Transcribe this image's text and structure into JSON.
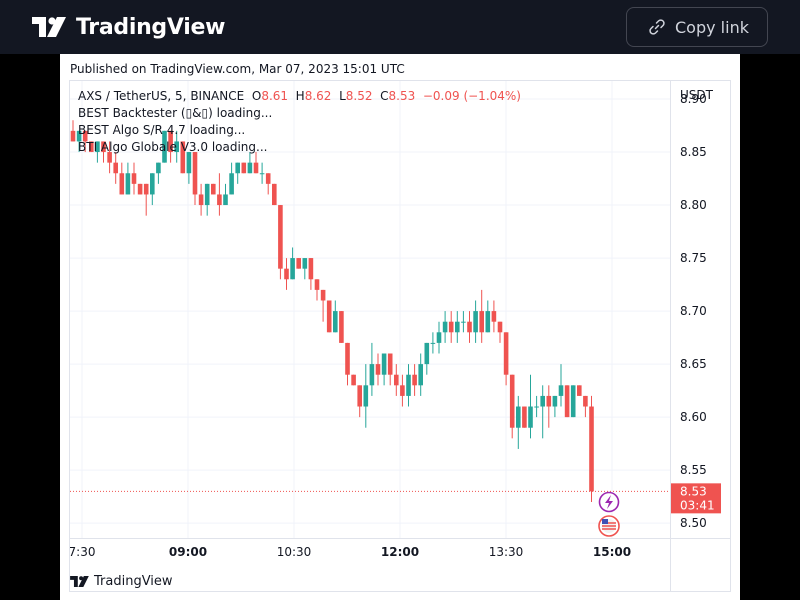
{
  "topbar": {
    "brand": "TradingView",
    "copy_link_label": "Copy link"
  },
  "published_line": "Published on TradingView.com, Mar 07, 2023 15:01 UTC",
  "legend": {
    "symbol": "AXS / TetherUS, 5, BINANCE",
    "o_label": "O",
    "o_value": "8.61",
    "h_label": "H",
    "h_value": "8.62",
    "l_label": "L",
    "l_value": "8.52",
    "c_label": "C",
    "c_value": "8.53",
    "change": "−0.09 (−1.04%)",
    "indicators": [
      "BEST Backtester (▯&▯) loading...",
      "BEST Algo S/R 4.7 loading...",
      "BTI Algo Globale V3.0 loading..."
    ]
  },
  "footer_brand": "TradingView",
  "colors": {
    "up": "#26a69a",
    "down": "#ef5350",
    "bg": "#131722"
  },
  "chart_data": {
    "type": "candlestick",
    "currency": "USDT",
    "y_ticks": [
      "8.90",
      "8.85",
      "8.80",
      "8.75",
      "8.70",
      "8.65",
      "8.60",
      "8.55",
      "8.50"
    ],
    "x_ticks": [
      {
        "label": "7:30",
        "bold": false
      },
      {
        "label": "09:00",
        "bold": true
      },
      {
        "label": "10:30",
        "bold": false
      },
      {
        "label": "12:00",
        "bold": true
      },
      {
        "label": "13:30",
        "bold": false
      },
      {
        "label": "15:00",
        "bold": true
      }
    ],
    "ylim": [
      8.486,
      8.917
    ],
    "last_price": "8.53",
    "countdown": "03:41",
    "candles": [
      [
        8.87,
        8.88,
        8.86,
        8.86
      ],
      [
        8.86,
        8.87,
        8.85,
        8.87
      ],
      [
        8.87,
        8.87,
        8.85,
        8.86
      ],
      [
        8.86,
        8.86,
        8.85,
        8.85
      ],
      [
        8.85,
        8.86,
        8.84,
        8.86
      ],
      [
        8.86,
        8.86,
        8.84,
        8.85
      ],
      [
        8.85,
        8.86,
        8.83,
        8.84
      ],
      [
        8.84,
        8.85,
        8.82,
        8.83
      ],
      [
        8.83,
        8.84,
        8.81,
        8.81
      ],
      [
        8.81,
        8.84,
        8.81,
        8.83
      ],
      [
        8.83,
        8.84,
        8.81,
        8.82
      ],
      [
        8.82,
        8.82,
        8.81,
        8.81
      ],
      [
        8.82,
        8.82,
        8.79,
        8.81
      ],
      [
        8.81,
        8.83,
        8.8,
        8.83
      ],
      [
        8.83,
        8.84,
        8.82,
        8.84
      ],
      [
        8.84,
        8.87,
        8.84,
        8.87
      ],
      [
        8.87,
        8.87,
        8.84,
        8.85
      ],
      [
        8.85,
        8.87,
        8.84,
        8.86
      ],
      [
        8.86,
        8.86,
        8.83,
        8.83
      ],
      [
        8.83,
        8.85,
        8.82,
        8.85
      ],
      [
        8.85,
        8.85,
        8.8,
        8.81
      ],
      [
        8.81,
        8.82,
        8.79,
        8.8
      ],
      [
        8.8,
        8.82,
        8.79,
        8.82
      ],
      [
        8.82,
        8.82,
        8.81,
        8.81
      ],
      [
        8.81,
        8.83,
        8.79,
        8.8
      ],
      [
        8.8,
        8.82,
        8.8,
        8.81
      ],
      [
        8.81,
        8.84,
        8.81,
        8.83
      ],
      [
        8.83,
        8.84,
        8.82,
        8.84
      ],
      [
        8.84,
        8.84,
        8.83,
        8.83
      ],
      [
        8.83,
        8.85,
        8.83,
        8.84
      ],
      [
        8.84,
        8.85,
        8.83,
        8.83
      ],
      [
        8.83,
        8.84,
        8.82,
        8.83
      ],
      [
        8.83,
        8.83,
        8.81,
        8.82
      ],
      [
        8.82,
        8.82,
        8.8,
        8.8
      ],
      [
        8.8,
        8.8,
        8.73,
        8.74
      ],
      [
        8.74,
        8.75,
        8.72,
        8.73
      ],
      [
        8.73,
        8.76,
        8.73,
        8.75
      ],
      [
        8.75,
        8.75,
        8.74,
        8.74
      ],
      [
        8.74,
        8.75,
        8.73,
        8.75
      ],
      [
        8.75,
        8.75,
        8.72,
        8.73
      ],
      [
        8.73,
        8.73,
        8.71,
        8.72
      ],
      [
        8.72,
        8.72,
        8.69,
        8.71
      ],
      [
        8.71,
        8.71,
        8.68,
        8.68
      ],
      [
        8.68,
        8.71,
        8.68,
        8.7
      ],
      [
        8.7,
        8.7,
        8.67,
        8.67
      ],
      [
        8.67,
        8.67,
        8.63,
        8.64
      ],
      [
        8.64,
        8.64,
        8.63,
        8.63
      ],
      [
        8.63,
        8.63,
        8.6,
        8.61
      ],
      [
        8.61,
        8.65,
        8.59,
        8.63
      ],
      [
        8.63,
        8.67,
        8.62,
        8.65
      ],
      [
        8.65,
        8.66,
        8.63,
        8.64
      ],
      [
        8.64,
        8.66,
        8.63,
        8.66
      ],
      [
        8.66,
        8.66,
        8.63,
        8.64
      ],
      [
        8.64,
        8.65,
        8.62,
        8.63
      ],
      [
        8.63,
        8.64,
        8.61,
        8.62
      ],
      [
        8.62,
        8.65,
        8.61,
        8.64
      ],
      [
        8.64,
        8.65,
        8.62,
        8.63
      ],
      [
        8.63,
        8.66,
        8.62,
        8.65
      ],
      [
        8.65,
        8.67,
        8.64,
        8.67
      ],
      [
        8.67,
        8.68,
        8.66,
        8.67
      ],
      [
        8.67,
        8.69,
        8.66,
        8.68
      ],
      [
        8.68,
        8.7,
        8.67,
        8.69
      ],
      [
        8.69,
        8.7,
        8.67,
        8.68
      ],
      [
        8.68,
        8.7,
        8.67,
        8.69
      ],
      [
        8.69,
        8.7,
        8.68,
        8.69
      ],
      [
        8.69,
        8.7,
        8.67,
        8.68
      ],
      [
        8.68,
        8.71,
        8.67,
        8.7
      ],
      [
        8.7,
        8.72,
        8.67,
        8.68
      ],
      [
        8.68,
        8.71,
        8.68,
        8.7
      ],
      [
        8.7,
        8.71,
        8.68,
        8.69
      ],
      [
        8.69,
        8.69,
        8.67,
        8.68
      ],
      [
        8.68,
        8.68,
        8.63,
        8.64
      ],
      [
        8.64,
        8.64,
        8.58,
        8.59
      ],
      [
        8.59,
        8.62,
        8.57,
        8.61
      ],
      [
        8.61,
        8.61,
        8.59,
        8.59
      ],
      [
        8.59,
        8.64,
        8.58,
        8.61
      ],
      [
        8.61,
        8.62,
        8.6,
        8.61
      ],
      [
        8.61,
        8.63,
        8.58,
        8.62
      ],
      [
        8.62,
        8.63,
        8.59,
        8.61
      ],
      [
        8.61,
        8.62,
        8.6,
        8.62
      ],
      [
        8.62,
        8.65,
        8.61,
        8.63
      ],
      [
        8.63,
        8.63,
        8.6,
        8.6
      ],
      [
        8.6,
        8.63,
        8.6,
        8.63
      ],
      [
        8.63,
        8.63,
        8.62,
        8.62
      ],
      [
        8.62,
        8.62,
        8.6,
        8.61
      ],
      [
        8.61,
        8.62,
        8.52,
        8.53
      ]
    ]
  }
}
